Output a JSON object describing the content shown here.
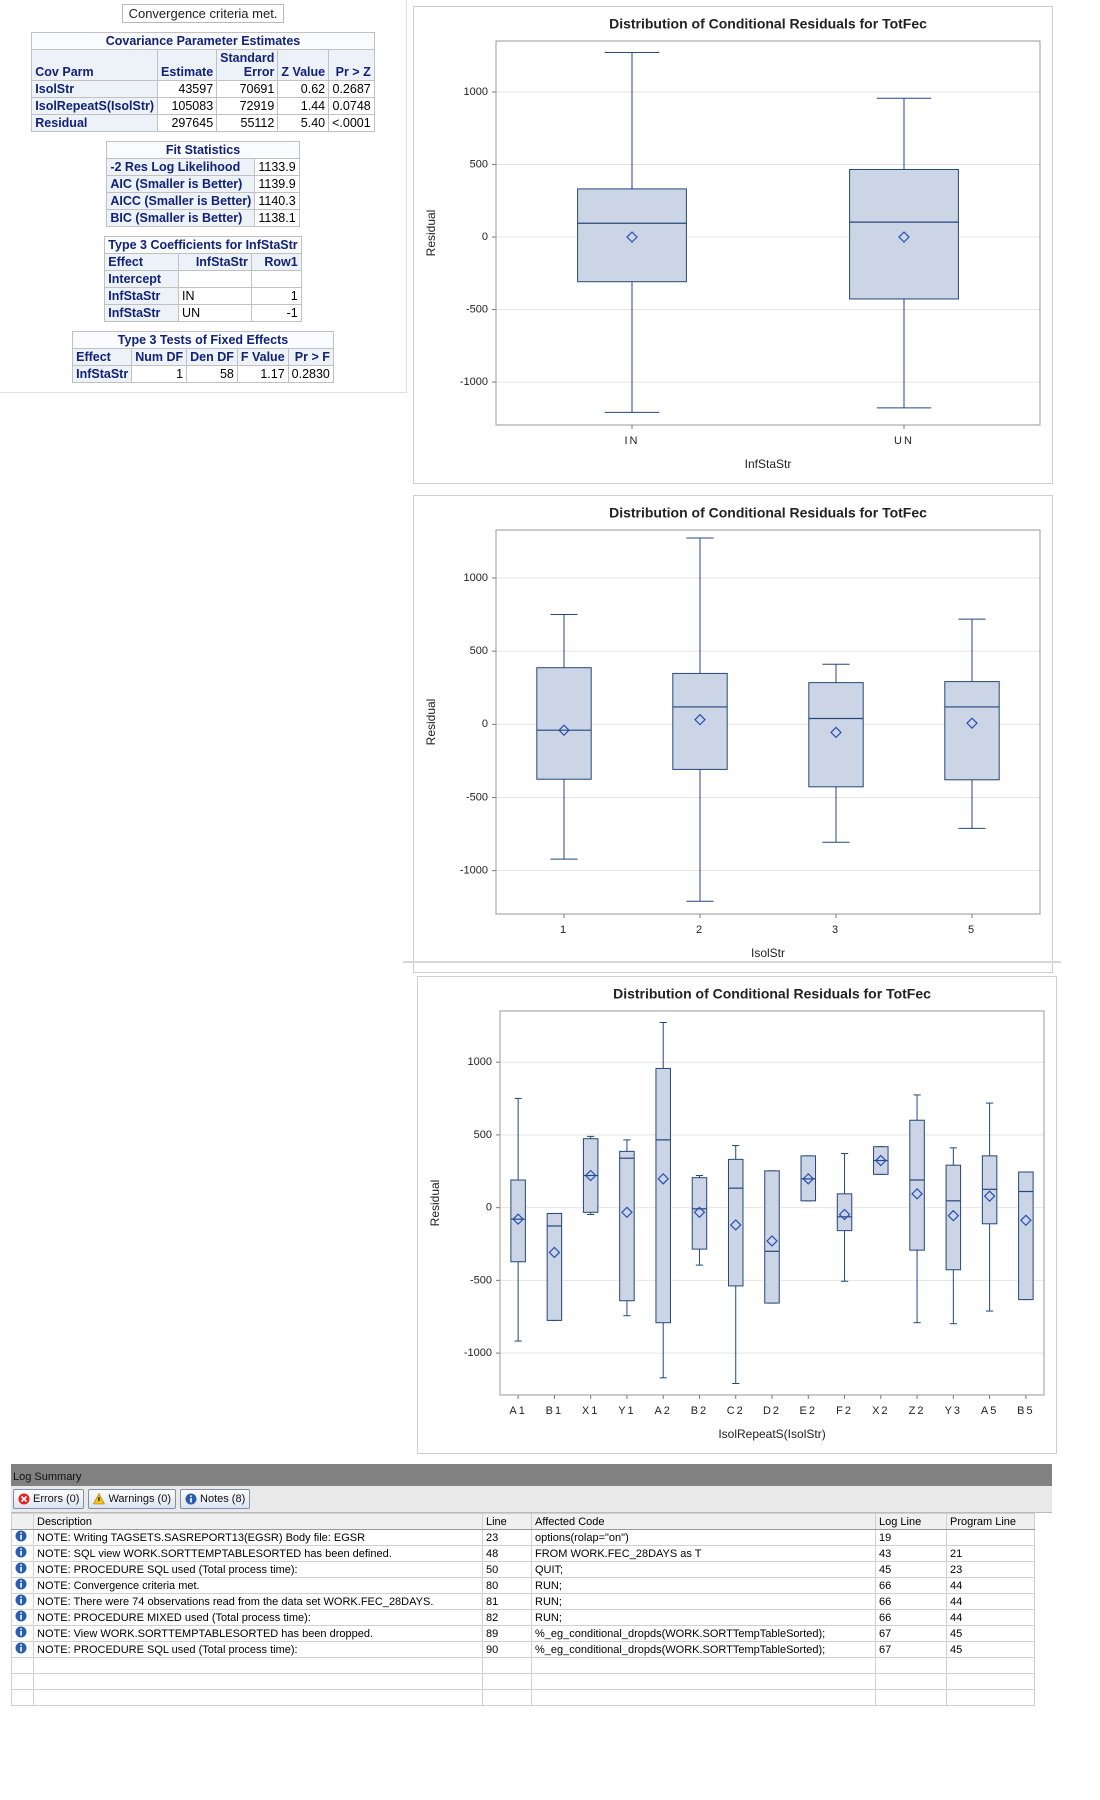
{
  "left_panel": {
    "message": "Convergence criteria met.",
    "tables": [
      {
        "title": "Covariance Parameter Estimates",
        "columns": [
          "Cov Parm",
          "Estimate",
          "Standard Error",
          "Z Value",
          "Pr > Z"
        ],
        "rows": [
          [
            "IsolStr",
            "43597",
            "70691",
            "0.62",
            "0.2687"
          ],
          [
            "IsolRepeatS(IsolStr)",
            "105083",
            "72919",
            "1.44",
            "0.0748"
          ],
          [
            "Residual",
            "297645",
            "55112",
            "5.40",
            "<.0001"
          ]
        ]
      },
      {
        "title": "Fit Statistics",
        "rows": [
          [
            "-2 Res Log Likelihood",
            "1133.9"
          ],
          [
            "AIC (Smaller is Better)",
            "1139.9"
          ],
          [
            "AICC (Smaller is Better)",
            "1140.3"
          ],
          [
            "BIC (Smaller is Better)",
            "1138.1"
          ]
        ]
      },
      {
        "title": "Type 3 Coefficients for InfStaStr",
        "columns": [
          "Effect",
          "InfStaStr",
          "Row1"
        ],
        "rows": [
          [
            "Intercept",
            null,
            null
          ],
          [
            "InfStaStr",
            "IN",
            "1"
          ],
          [
            "InfStaStr",
            "UN",
            "-1"
          ]
        ]
      },
      {
        "title": "Type 3 Tests of Fixed Effects",
        "columns": [
          "Effect",
          "Num DF",
          "Den DF",
          "F Value",
          "Pr > F"
        ],
        "rows": [
          [
            "InfStaStr",
            "1",
            "58",
            "1.17",
            "0.2830"
          ]
        ]
      }
    ]
  },
  "chart_data": [
    {
      "type": "box",
      "title": "Distribution of Conditional Residuals for TotFec",
      "xlabel": "InfStaStr",
      "ylabel": "Residual",
      "categories": [
        "IN",
        "UN"
      ],
      "color": "#cbd5e6",
      "line_color": "#25477a",
      "grid": true,
      "ylim": [
        -1296,
        1352
      ],
      "yticks": [
        -1000,
        -500,
        0,
        500,
        1000
      ],
      "boxes": [
        {
          "min": -1209,
          "q1": -308,
          "median": 95,
          "q3": 332,
          "max": 1273,
          "mean": 0
        },
        {
          "min": -1178,
          "q1": -427,
          "median": 103,
          "q3": 466,
          "max": 957,
          "mean": 0
        }
      ]
    },
    {
      "type": "box",
      "title": "Distribution of Conditional Residuals for TotFec",
      "xlabel": "IsolStr",
      "ylabel": "Residual",
      "categories": [
        "1",
        "2",
        "3",
        "5"
      ],
      "color": "#cbd5e6",
      "line_color": "#25477a",
      "grid": true,
      "ylim": [
        -1296,
        1328
      ],
      "yticks": [
        -1000,
        -500,
        0,
        500,
        1000
      ],
      "boxes": [
        {
          "min": -921,
          "q1": -375,
          "median": -40,
          "q3": 387,
          "max": 751,
          "mean": -40
        },
        {
          "min": -1209,
          "q1": -308,
          "median": 119,
          "q3": 348,
          "max": 1273,
          "mean": 32
        },
        {
          "min": -806,
          "q1": -427,
          "median": 40,
          "q3": 285,
          "max": 411,
          "mean": -55
        },
        {
          "min": -711,
          "q1": -379,
          "median": 119,
          "q3": 292,
          "max": 719,
          "mean": 8
        }
      ]
    },
    {
      "type": "box",
      "title": "Distribution of Conditional Residuals for TotFec",
      "xlabel": "IsolRepeatS(IsolStr)",
      "ylabel": "Residual",
      "categories": [
        "A1",
        "B1",
        "X1",
        "Y1",
        "A2",
        "B2",
        "C2",
        "D2",
        "E2",
        "F2",
        "X2",
        "Z2",
        "Y3",
        "A5",
        "B5"
      ],
      "color": "#cbd5e6",
      "line_color": "#25477a",
      "grid": true,
      "ylim": [
        -1288,
        1352
      ],
      "yticks": [
        -1000,
        -500,
        0,
        500,
        1000
      ],
      "boxes": [
        {
          "min": -917,
          "q1": -372,
          "median": -79,
          "q3": 190,
          "max": 751,
          "mean": -79
        },
        {
          "min": -775,
          "q1": -775,
          "median": -126,
          "q3": -40,
          "max": -40,
          "mean": -308
        },
        {
          "min": -47,
          "q1": -32,
          "median": 221,
          "q3": 474,
          "max": 490,
          "mean": 221
        },
        {
          "min": -743,
          "q1": -640,
          "median": 340,
          "q3": 387,
          "max": 466,
          "mean": -32
        },
        {
          "min": -1170,
          "q1": -791,
          "median": 466,
          "q3": 957,
          "max": 1273,
          "mean": 198
        },
        {
          "min": -395,
          "q1": -285,
          "median": -8,
          "q3": 206,
          "max": 221,
          "mean": -32
        },
        {
          "min": -1209,
          "q1": -538,
          "median": 134,
          "q3": 332,
          "max": 427,
          "mean": -119
        },
        {
          "min": -656,
          "q1": -656,
          "median": -300,
          "q3": 253,
          "max": 253,
          "mean": -229
        },
        {
          "min": 47,
          "q1": 47,
          "median": 198,
          "q3": 356,
          "max": 356,
          "mean": 198
        },
        {
          "min": -506,
          "q1": -158,
          "median": -63,
          "q3": 95,
          "max": 372,
          "mean": -47
        },
        {
          "min": 229,
          "q1": 229,
          "median": 324,
          "q3": 419,
          "max": 419,
          "mean": 324
        },
        {
          "min": -791,
          "q1": -292,
          "median": 190,
          "q3": 601,
          "max": 775,
          "mean": 95
        },
        {
          "min": -798,
          "q1": -427,
          "median": 47,
          "q3": 292,
          "max": 411,
          "mean": -55
        },
        {
          "min": -711,
          "q1": -111,
          "median": 126,
          "q3": 356,
          "max": 719,
          "mean": 79
        },
        {
          "min": -632,
          "q1": -632,
          "median": 111,
          "q3": 245,
          "max": 245,
          "mean": -87
        }
      ]
    }
  ],
  "log_summary": {
    "title": "Log Summary",
    "buttons": [
      "Errors (0)",
      "Warnings (0)",
      "Notes (8)"
    ],
    "columns": [
      "Description",
      "Line",
      "Affected Code",
      "Log Line",
      "Program Line"
    ],
    "rows": [
      [
        "NOTE: Writing TAGSETS.SASREPORT13(EGSR) Body file: EGSR",
        "23",
        "options(rolap=\"on\")",
        "19",
        null
      ],
      [
        "NOTE: SQL view WORK.SORTTEMPTABLESORTED has been defined.",
        "48",
        "FROM WORK.FEC_28DAYS as T",
        "43",
        "21"
      ],
      [
        "NOTE: PROCEDURE SQL used (Total process time):",
        "50",
        "QUIT;",
        "45",
        "23"
      ],
      [
        "NOTE: Convergence criteria met.",
        "80",
        "RUN;",
        "66",
        "44"
      ],
      [
        "NOTE: There were 74 observations read from the data set WORK.FEC_28DAYS.",
        "81",
        "RUN;",
        "66",
        "44"
      ],
      [
        "NOTE: PROCEDURE MIXED used (Total process time):",
        "82",
        "RUN;",
        "66",
        "44"
      ],
      [
        "NOTE: View WORK.SORTTEMPTABLESORTED has been dropped.",
        "89",
        "%_eg_conditional_dropds(WORK.SORTTempTableSorted);",
        "67",
        "45"
      ],
      [
        "NOTE: PROCEDURE SQL used (Total process time):",
        "90",
        "%_eg_conditional_dropds(WORK.SORTTempTableSorted);",
        "67",
        "45"
      ]
    ]
  }
}
